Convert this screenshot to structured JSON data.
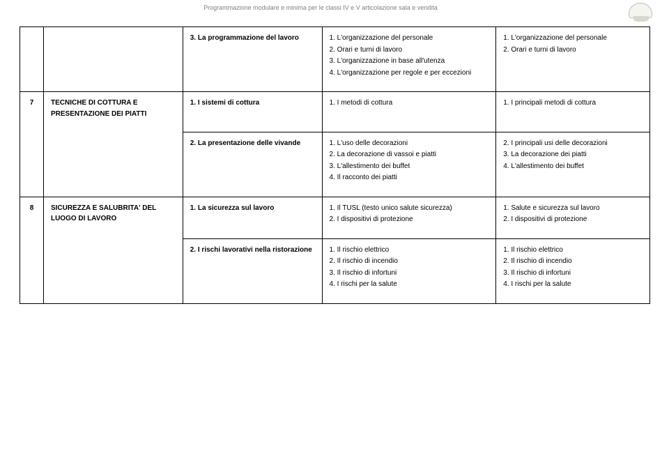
{
  "header_text": "Programmazione modulare e minima per le classi IV e V articolazione sala e vendita",
  "blocks": [
    {
      "module_num": "",
      "topic": "",
      "c1": [
        "3.  La programmazione del lavoro"
      ],
      "c2": [
        "1.  L'organizzazione del personale",
        "2.  Orari e turni di lavoro",
        "3.  L'organizzazione in base all'utenza",
        "4.  L'organizzazione per regole e per eccezioni"
      ],
      "c3": [
        "1.  L'organizzazione del personale",
        "2.  Orari e turni di lavoro"
      ],
      "is_first_row": true
    },
    {
      "module_num": "7",
      "topic": "TECNICHE DI COTTURA E PRESENTAZIONE DEI PIATTI",
      "c1": [
        "1.  I sistemi di cottura"
      ],
      "c2": [
        "1.  I metodi di cottura"
      ],
      "c3": [
        "1.  I principali metodi di cottura"
      ],
      "is_first_row": true
    },
    {
      "module_num": "",
      "topic": "",
      "c1": [
        "2.  La presentazione delle vivande"
      ],
      "c2": [
        "1.  L'uso delle decorazioni",
        "2.  La decorazione di vassoi e piatti",
        "3.  L'allestimento dei buffet",
        "4.  Il racconto dei piatti"
      ],
      "c3": [
        "2.  I principali usi delle decorazioni",
        "3.  La decorazione dei piatti",
        "4.  L'allestimento dei buffet"
      ],
      "is_first_row": false
    },
    {
      "module_num": "8",
      "topic": "SICUREZZA E SALUBRITA' DEL LUOGO DI LAVORO",
      "c1": [
        "1.  La sicurezza sul lavoro"
      ],
      "c2": [
        "1.  Il TUSL (testo unico salute sicurezza)",
        "2.  I dispositivi di protezione"
      ],
      "c3": [
        "1.  Salute e sicurezza sul lavoro",
        "2.  I dispositivi di protezione"
      ],
      "is_first_row": true
    },
    {
      "module_num": "",
      "topic": "",
      "c1": [
        "2.  I rischi lavorativi nella ristorazione"
      ],
      "c2": [
        "1.  Il rischio elettrico",
        "2.  Il rischio di incendio",
        "3.  Il rischio di infortuni",
        "4.  I rischi per la salute"
      ],
      "c3": [
        "1.  Il rischio elettrico",
        "2.  Il rischio di incendio",
        "3.  Il rischio di infortuni",
        "4.  I rischi per la salute"
      ],
      "is_first_row": false
    }
  ]
}
